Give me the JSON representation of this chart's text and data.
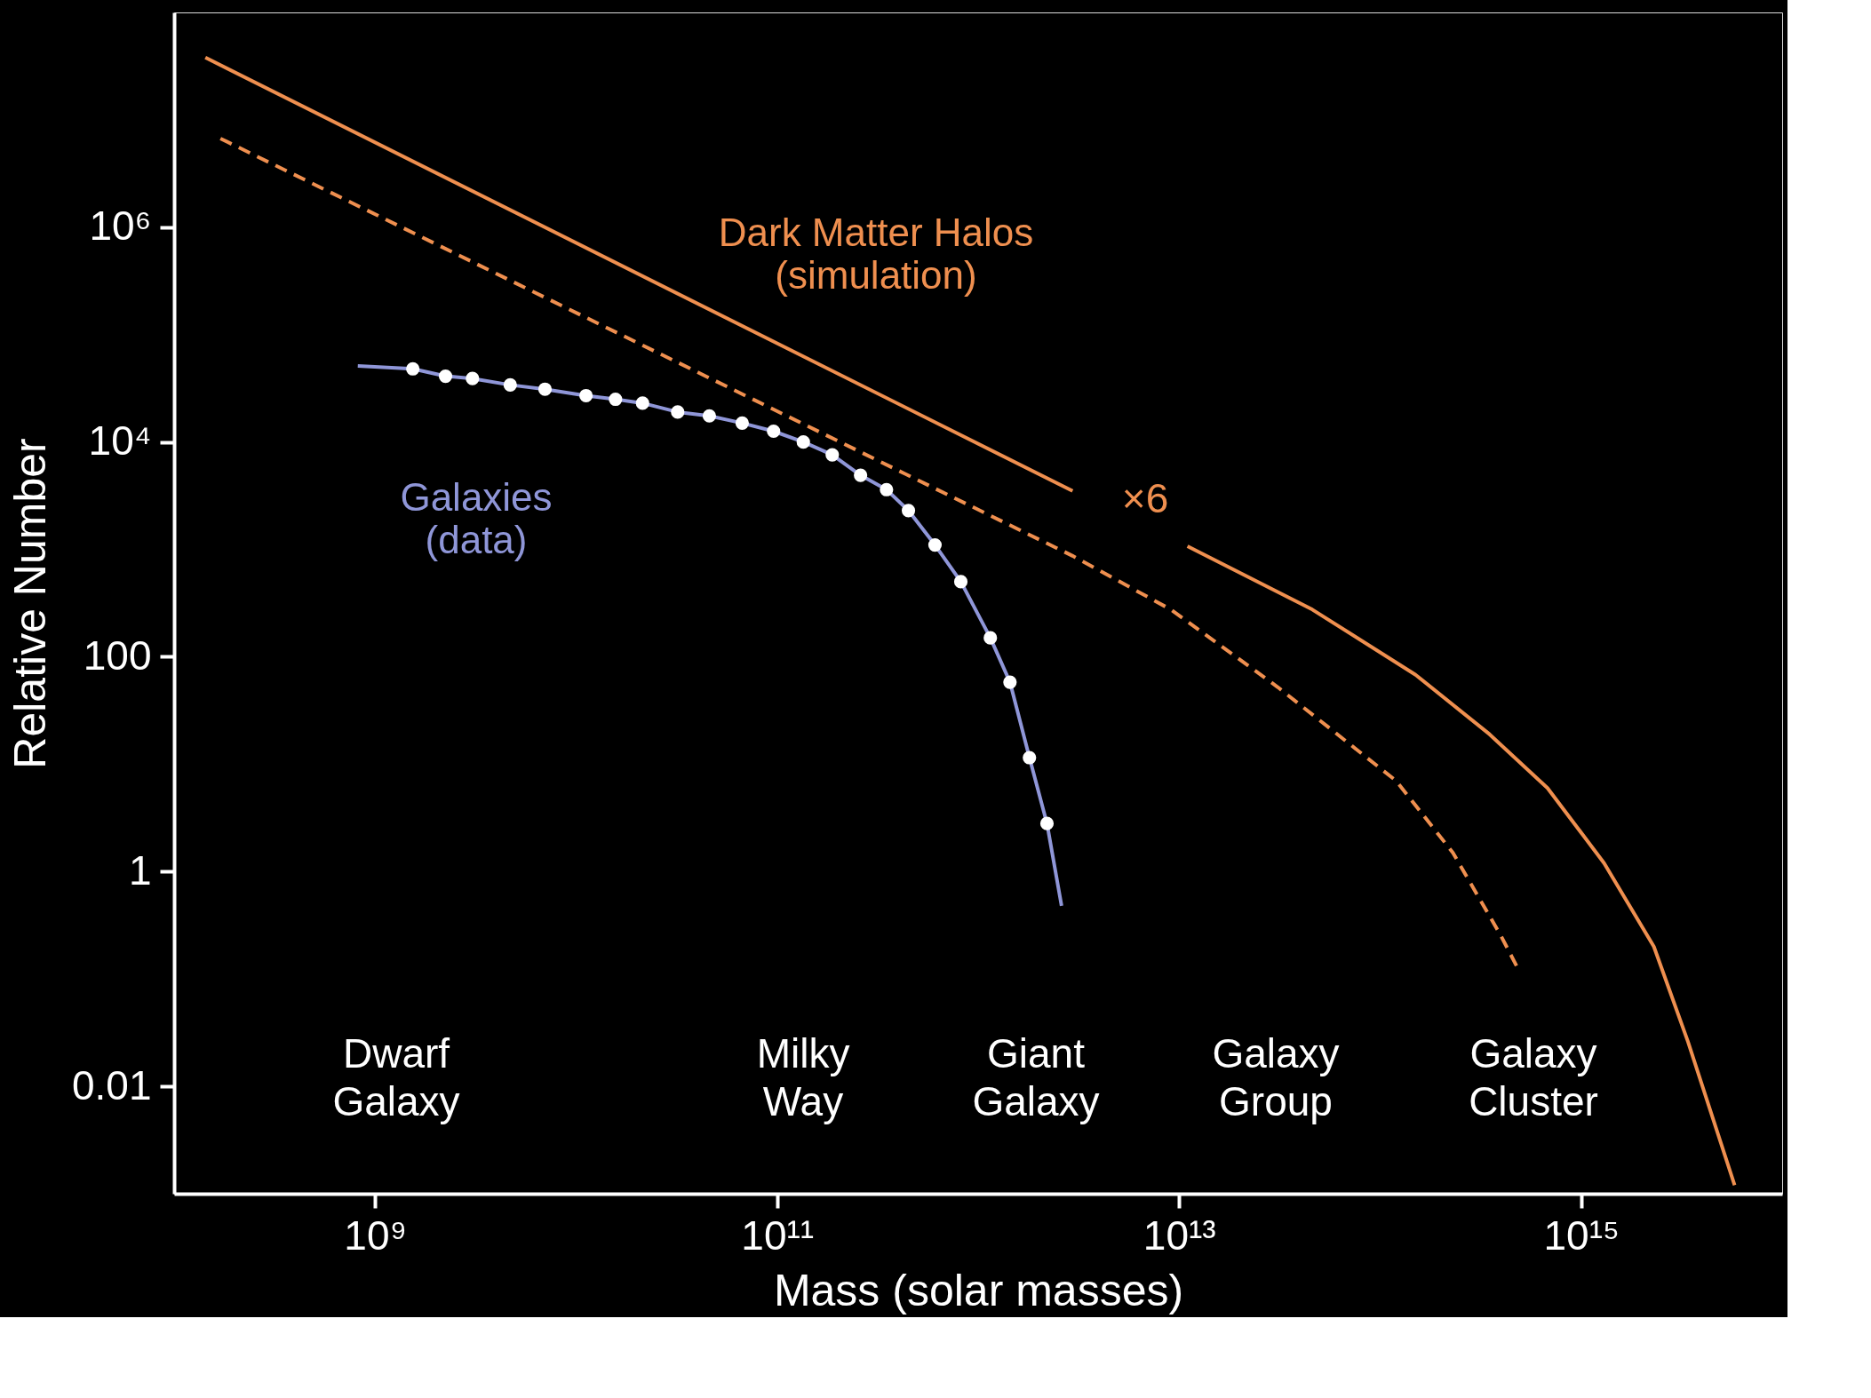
{
  "chart_data": {
    "type": "line",
    "xlabel": "Mass (solar masses)",
    "ylabel": "Relative Number",
    "log": "xy",
    "grid": false,
    "xlim": [
      100000000,
      10000000000000000
    ],
    "ylim": [
      0.001,
      100000000
    ],
    "xticks": [
      {
        "value": 1000000000,
        "label": "10⁹"
      },
      {
        "value": 100000000000,
        "label": "10¹¹"
      },
      {
        "value": 10000000000000,
        "label": "10¹³"
      },
      {
        "value": 1000000000000000,
        "label": "10¹⁵"
      }
    ],
    "yticks": [
      0.01,
      1,
      100,
      {
        "value": 10000,
        "label": "10⁴"
      },
      {
        "value": 1000000,
        "label": "10⁶"
      }
    ],
    "series": [
      {
        "name": "Dark Matter Halos\n(simulation)",
        "color": "#ef8f4f",
        "line_style": "solid",
        "x": [
          143000000.0,
          2950000000000.0,
          6000000000000.0,
          11000000000000.0,
          46000000000000.0,
          150000000000000.0,
          350000000000000.0,
          680000000000000.0,
          1300000000000000.0,
          2300000000000000.0,
          3400000000000000.0,
          5800000000000000.0
        ],
        "values": [
          38000000.0,
          3500,
          null,
          1070,
          275,
          68,
          19,
          6,
          1.2,
          0.2,
          0.026,
          0.0012
        ]
      },
      {
        "color": "#ef8f4f",
        "line_style": "dashed",
        "x": [
          170000000.0,
          2950000000000.0,
          9100000000000.0,
          31000000000000.0,
          120000000000000.0,
          230000000000000.0,
          400000000000000.0,
          490000000000000.0
        ],
        "values": [
          6700000.0,
          870,
          275,
          52,
          7,
          1.5,
          0.25,
          0.12
        ]
      },
      {
        "name": "Galaxies\n(data)",
        "color": "#8f96d8",
        "line_style": "solid",
        "x": [
          820000000.0,
          1540000000.0,
          2240000000.0,
          3050000000.0,
          4700000000.0,
          7000000000.0,
          11200000000.0,
          15700000000.0,
          21400000000.0,
          32000000000.0,
          46000000000.0,
          67000000000.0,
          96000000000.0,
          135000000000.0,
          188000000000.0,
          260000000000.0,
          350000000000.0,
          450000000000.0,
          610000000000.0,
          820000000000.0,
          1150000000000.0,
          1440000000000.0,
          1800000000000.0,
          2200000000000.0,
          2600000000000.0
        ],
        "values": [
          51000,
          48000,
          41000,
          39000,
          34000,
          31000,
          27000,
          25000,
          23000,
          19000,
          17500,
          15000,
          12600,
          10000,
          7600,
          4900,
          3600,
          2300,
          1100,
          500,
          150,
          58,
          11.5,
          2.8,
          0.48
        ]
      },
      {
        "type": "scatter",
        "color": "#ffffff",
        "marker": "circle",
        "x": [
          1540000000.0,
          2240000000.0,
          3050000000.0,
          4700000000.0,
          7000000000.0,
          11200000000.0,
          15700000000.0,
          21400000000.0,
          32000000000.0,
          46000000000.0,
          67000000000.0,
          96000000000.0,
          135000000000.0,
          188000000000.0,
          260000000000.0,
          350000000000.0,
          450000000000.0,
          610000000000.0,
          820000000000.0,
          1150000000000.0,
          1440000000000.0,
          1800000000000.0,
          2200000000000.0
        ],
        "values": [
          48000,
          41000,
          39000,
          34000,
          31000,
          27000,
          25000,
          23000,
          19000,
          17500,
          15000,
          12600,
          10000,
          7600,
          4900,
          3600,
          2300,
          1100,
          500,
          150,
          58,
          11.5,
          2.8
        ]
      }
    ],
    "annotations": [
      "×6",
      "Dwarf\nGalaxy",
      "Milky\nWay",
      "Giant\nGalaxy",
      "Galaxy\nGroup",
      "Galaxy\nCluster"
    ]
  }
}
